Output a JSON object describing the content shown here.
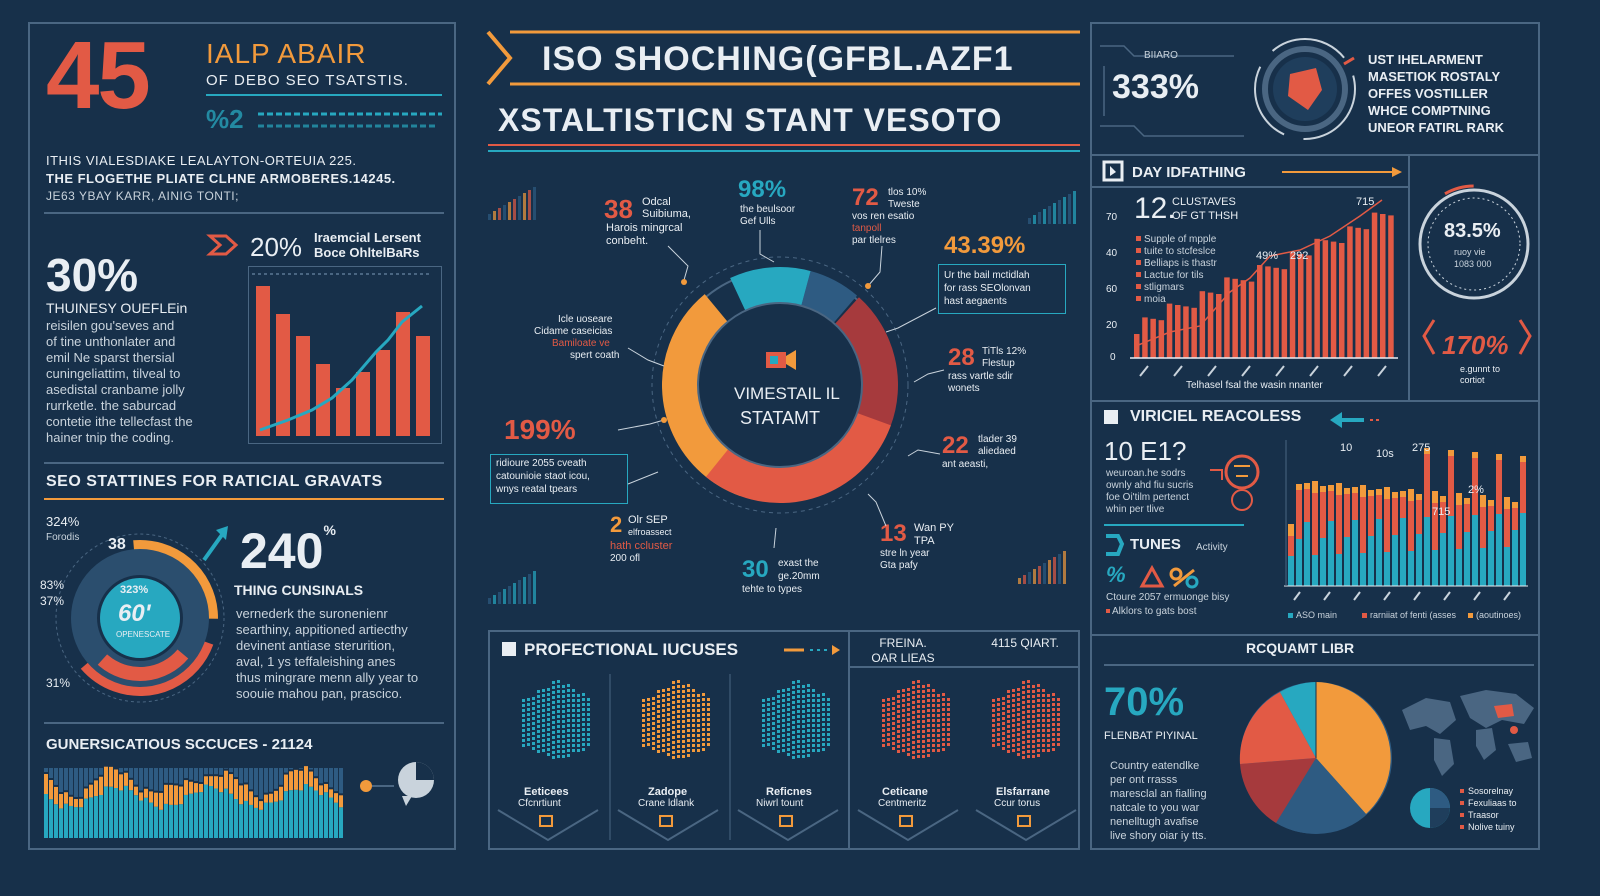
{
  "colors": {
    "bg": "#17304a",
    "red": "#e25a45",
    "orange": "#f29a3c",
    "teal": "#27a8c0",
    "cream": "#e9eef3",
    "line": "#4a6682"
  },
  "left": {
    "big_number": "45",
    "head_line1": "IALP ABAIR",
    "head_line2": "OF DEBO SEO TSATSTIS.",
    "small_number": "%2",
    "para": [
      "ITHIS VIALESDIAKE LEALAYTON-ORTEUIA 225.",
      "THE FLOGETHE PLIATE CLHNE ARMOBERES.14245.",
      "JE63 YBAY KARR, AINIG TONTI;"
    ],
    "pct_30": "30%",
    "pct_30_heading": "THUINESY OUEFLEin",
    "pct_30_text": [
      "reisilen gou'seves and",
      "of tine unthonlater and",
      "emil Ne sparst thersial",
      "cuningeliattim, tilveal to",
      "asedistal cranbame jolly",
      "rurrketle. the saburcad",
      "contetie ithe tellecfast the",
      "hainer tnip the coding."
    ],
    "bar_pct": "20%",
    "bar_label_1": "Iraemcial Lersent",
    "bar_label_2": "Boce OhltelBaRs",
    "section_title": "SEO STATTINES FOR RATICIAL GRAVATS",
    "donut_top_label": "324%",
    "donut_top_sub": "Forodis",
    "donut_left_1": "83%",
    "donut_left_2": "37%",
    "donut_bottom": "31%",
    "donut_seg": "38",
    "donut_center_pct": "323%",
    "donut_center_big": "60'",
    "donut_center_sub": "OPENESCATE",
    "big_240": "240",
    "big_240_sup": "%",
    "big_240_title": "THING CUNSINALS",
    "big_240_text": [
      "vernederk the suronenienr",
      "searthiny, appitioned artiecthy",
      "devinent antiase sterurition,",
      "aval, 1 ys teffaleishing anes",
      "thus mingrare menn ally year to",
      "soouie mahou pan, prascico."
    ],
    "footer_title": "GUNERSICATIOUS SCCUCES - 21124"
  },
  "center": {
    "banner_title": "ISO SHOCHING(GFBL.AZF1",
    "subtitle": "XSTALTISTICN STANT VESOTO",
    "ring_center_1": "VIMESTAIL IL",
    "ring_center_2": "STATAMT",
    "callouts": [
      {
        "num": "38",
        "text": [
          "Odcal",
          "Suibiuma,",
          "Harois mingrcal",
          "conbeht."
        ]
      },
      {
        "num": "98%",
        "text": [
          "the beulsoor",
          "Gef Ulls"
        ]
      },
      {
        "num": "72",
        "text": [
          "tlos 10%",
          "Tweste",
          "vos ren esatio",
          "tanpoll",
          "par tlelres"
        ]
      },
      {
        "num": "43.39%",
        "text": [
          "Ur the bail mctidlah",
          "for rass SEOlonvan",
          "hast aegaents"
        ]
      },
      {
        "num": "28",
        "text": [
          "TiTls 12%",
          "Flestup",
          "rass vartle sdir",
          "wonets"
        ]
      },
      {
        "num": "22",
        "text": [
          "tlader 39",
          "aliedaed",
          "ant aeasti,"
        ]
      },
      {
        "num": "13",
        "text": [
          "Wan PY",
          "TPA",
          "stre ln year",
          "Gta pafy"
        ]
      },
      {
        "num": "30",
        "text": [
          "exast the",
          "ge.20mm",
          "tehte to types"
        ]
      },
      {
        "num": "2",
        "text": [
          "Olr SEP",
          "elfroassect",
          "hath ccluster",
          "200 ofl"
        ]
      },
      {
        "num": "199%",
        "text": [
          "ridioure 2055 cveath",
          "catounioie staot icou,",
          "wnys reatal tpears"
        ]
      },
      {
        "num": "",
        "text": [
          "Icle uoseare",
          "Cidame caseicias",
          "Bamiloate ve",
          "spert coath"
        ]
      }
    ],
    "prof_title": "PROFECTIONAL IUCUSES",
    "prof_col_a": "FREINA. OAR LIEAS",
    "prof_col_b": "4115 QIART.",
    "prof_items": [
      {
        "l1": "Eeticees",
        "l2": "Cfcnrtiunt"
      },
      {
        "l1": "Zadope",
        "l2": "Crane ldlank"
      },
      {
        "l1": "Reficnes",
        "l2": "Niwrl tount"
      },
      {
        "l1": "Ceticane",
        "l2": "Centmeritz"
      },
      {
        "l1": "Elsfarrane",
        "l2": "Ccur torus"
      }
    ]
  },
  "right": {
    "top_pct": "333%",
    "top_pct_label": "BIIARO",
    "top_text": [
      "UST IHELARMENT",
      "MASETIOK ROSTALY",
      "OFFES VOSTILLER",
      "WHCE COMPTNING",
      "UNEOR FATIRL RARK"
    ],
    "day_title": "DAY IDFATHING",
    "day_big": "12.",
    "day_sub": [
      "CLUSTAVES",
      "OF GT THSH"
    ],
    "day_legend": [
      "Supple of mpple",
      "tuite to stcfeslce",
      "Belliaps is thastr",
      "Lactue for tils",
      "stligmars",
      "moia"
    ],
    "day_y_labels": [
      "70",
      "40",
      "60",
      "20",
      "0"
    ],
    "day_annot_1": "49%",
    "day_annot_2": "292",
    "day_annot_3": "715",
    "day_caption": "Telhasel fsal the wasin nnanter",
    "ring_pct": "83.5%",
    "ring_sub_1": "ruoy vie",
    "ring_sub_2": "1083 000",
    "pct_170": "170%",
    "pct_170_sub_1": "e.gunnt to",
    "pct_170_sub_2": "cortiot",
    "vir_title": "VIRICIEL REACOLESS",
    "vir_big": "10 E1?",
    "vir_text": [
      "weuroan.he sodrs",
      "ownly ahd fiu sucris",
      "foe Oi'tilm pertenct",
      "whin per tlive"
    ],
    "vir_annot_1": "10",
    "vir_annot_2": "10s",
    "vir_annot_3": "275",
    "vir_annot_4": "2%",
    "vir_annot_5": "715",
    "tunes_title": "TUNES",
    "tunes_sub": "Activity",
    "tunes_pct": "%",
    "tunes_lines": [
      "Ctoure 2057 ermuonge bisy",
      "Alklors to gats bost"
    ],
    "vir_legend": [
      "ASO main",
      "rarniiat of fenti (asses",
      "(aoutinoes)"
    ],
    "req_title": "RCQUAMT LIBR",
    "pct_70": "70%",
    "pct_70_sub": "FLENBAT PIYINAL",
    "pct_70_text": [
      "Country eatendlke",
      "per ont rrasss",
      "maresclal an fialling",
      "natcale to you war",
      "nenelltugh avafise",
      "live shory oiar iy tts."
    ],
    "map_legend": [
      "Sosorelnay",
      "Fexuliaas to",
      "Traasor",
      "Nolive tuiny"
    ]
  }
}
